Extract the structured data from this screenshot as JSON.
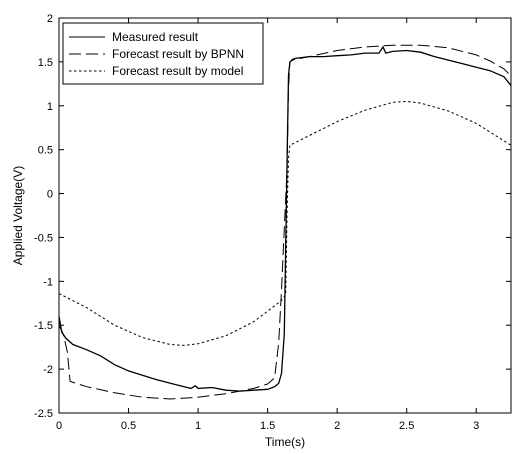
{
  "chart_data": {
    "type": "line",
    "xlabel": "Time(s)",
    "ylabel": "Applied Voltage(V)",
    "xlim": [
      0,
      3.25
    ],
    "ylim": [
      -2.5,
      2
    ],
    "xticks": [
      0,
      0.5,
      1,
      1.5,
      2,
      2.5,
      3
    ],
    "xtick_labels": [
      "0",
      "0.5",
      "1",
      "1.5",
      "2",
      "2.5",
      "3"
    ],
    "yticks": [
      -2.5,
      -2,
      -1.5,
      -1,
      -0.5,
      0,
      0.5,
      1,
      1.5,
      2
    ],
    "ytick_labels": [
      "-2.5",
      "-2",
      "-1.5",
      "-1",
      "-0.5",
      "0",
      "0.5",
      "1",
      "1.5",
      "2"
    ],
    "grid": false,
    "legend_position": "top-left",
    "series": [
      {
        "name": "Measured result",
        "style": "solid",
        "color": "#000000",
        "x": [
          0,
          0.02,
          0.05,
          0.1,
          0.2,
          0.3,
          0.4,
          0.5,
          0.6,
          0.7,
          0.8,
          0.9,
          0.95,
          0.98,
          1.0,
          1.1,
          1.2,
          1.3,
          1.4,
          1.5,
          1.55,
          1.58,
          1.6,
          1.62,
          1.63,
          1.64,
          1.65,
          1.66,
          1.68,
          1.7,
          1.8,
          1.9,
          2.0,
          2.1,
          2.2,
          2.3,
          2.33,
          2.35,
          2.4,
          2.5,
          2.6,
          2.7,
          2.8,
          2.9,
          3.0,
          3.1,
          3.2,
          3.25
        ],
        "y": [
          -1.4,
          -1.58,
          -1.65,
          -1.72,
          -1.78,
          -1.85,
          -1.95,
          -2.02,
          -2.07,
          -2.12,
          -2.16,
          -2.2,
          -2.22,
          -2.19,
          -2.22,
          -2.21,
          -2.24,
          -2.25,
          -2.24,
          -2.23,
          -2.2,
          -2.16,
          -2.05,
          -1.6,
          -0.6,
          0.4,
          1.35,
          1.5,
          1.53,
          1.54,
          1.56,
          1.56,
          1.57,
          1.58,
          1.6,
          1.6,
          1.67,
          1.6,
          1.62,
          1.63,
          1.61,
          1.56,
          1.52,
          1.48,
          1.44,
          1.4,
          1.33,
          1.23
        ]
      },
      {
        "name": "Forecast result by BPNN",
        "style": "dashed",
        "color": "#000000",
        "x": [
          0,
          0.03,
          0.06,
          0.08,
          0.2,
          0.4,
          0.6,
          0.8,
          1.0,
          1.2,
          1.4,
          1.5,
          1.55,
          1.58,
          1.6,
          1.62,
          1.64,
          1.65,
          1.66,
          1.68,
          1.7,
          1.8,
          2.0,
          2.2,
          2.4,
          2.6,
          2.8,
          3.0,
          3.1,
          3.2,
          3.25
        ],
        "y": [
          -1.5,
          -1.6,
          -1.8,
          -2.14,
          -2.2,
          -2.27,
          -2.32,
          -2.34,
          -2.32,
          -2.28,
          -2.22,
          -2.17,
          -2.1,
          -1.7,
          -1.1,
          -0.4,
          0.3,
          1.2,
          1.5,
          1.52,
          1.53,
          1.56,
          1.63,
          1.67,
          1.69,
          1.69,
          1.66,
          1.58,
          1.51,
          1.42,
          1.34
        ]
      },
      {
        "name": "Forecast result by model",
        "style": "dotted",
        "color": "#000000",
        "x": [
          0,
          0.2,
          0.4,
          0.6,
          0.8,
          0.9,
          1.0,
          1.2,
          1.4,
          1.6,
          1.63,
          1.64,
          1.65,
          1.66,
          1.8,
          2.0,
          2.2,
          2.4,
          2.5,
          2.6,
          2.8,
          3.0,
          3.2,
          3.25
        ],
        "y": [
          -1.14,
          -1.3,
          -1.5,
          -1.64,
          -1.72,
          -1.73,
          -1.71,
          -1.62,
          -1.46,
          -1.22,
          -1.15,
          -0.2,
          0.4,
          0.55,
          0.66,
          0.82,
          0.95,
          1.04,
          1.05,
          1.03,
          0.94,
          0.8,
          0.6,
          0.55
        ]
      }
    ]
  }
}
